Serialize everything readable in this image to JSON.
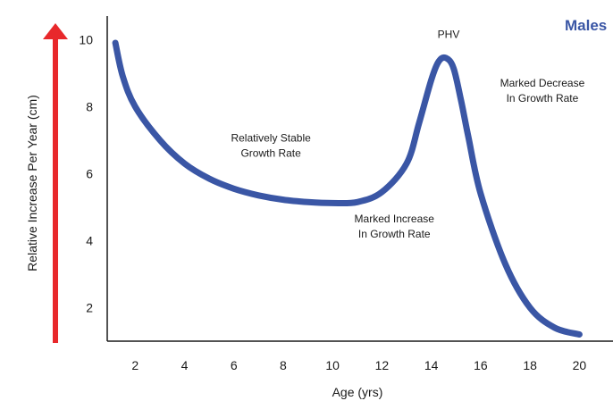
{
  "chart_data": {
    "type": "line",
    "title": "",
    "xlabel": "Age (yrs)",
    "ylabel": "Relative Increase Per Year (cm)",
    "xlim": [
      0,
      21
    ],
    "ylim": [
      1,
      10.7
    ],
    "x_ticks": [
      2,
      4,
      6,
      8,
      10,
      12,
      14,
      16,
      18,
      20
    ],
    "y_ticks": [
      2,
      4,
      6,
      8,
      10
    ],
    "grid": false,
    "series_label": "Males",
    "colors": {
      "line": "#3a56a5",
      "arrow": "#e8282b",
      "axis": "#1a1a1a"
    },
    "series": [
      {
        "x": [
          1.2,
          1.5,
          2,
          3,
          4,
          5,
          6,
          7,
          8,
          9,
          10,
          11,
          12,
          13,
          13.5,
          14,
          14.3,
          14.6,
          14.9,
          15.2,
          15.5,
          16,
          17,
          18,
          19,
          20
        ],
        "y": [
          9.9,
          8.9,
          8.0,
          7.0,
          6.3,
          5.85,
          5.55,
          5.35,
          5.22,
          5.15,
          5.12,
          5.15,
          5.45,
          6.3,
          7.5,
          8.8,
          9.35,
          9.45,
          9.15,
          8.2,
          7.1,
          5.4,
          3.3,
          2.0,
          1.4,
          1.2
        ]
      }
    ],
    "annotations": [
      {
        "lines": [
          "PHV"
        ],
        "x": 14.7,
        "y": 10.05
      },
      {
        "lines": [
          "Relatively Stable",
          "Growth Rate"
        ],
        "x": 7.5,
        "y": 6.95
      },
      {
        "lines": [
          "Marked Increase",
          "In Growth Rate"
        ],
        "x": 12.5,
        "y": 4.55
      },
      {
        "lines": [
          "Marked Decrease",
          "In Growth Rate"
        ],
        "x": 18.5,
        "y": 8.6
      }
    ]
  }
}
